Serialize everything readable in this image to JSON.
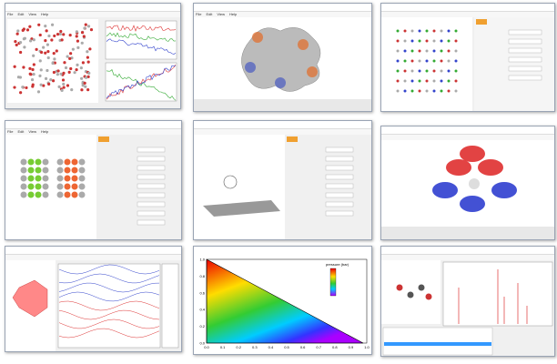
{
  "menus": {
    "window_1": [
      "File",
      "Edit",
      "View",
      "Help"
    ],
    "window_2": [
      "File",
      "Edit",
      "View",
      "Help"
    ],
    "window_4": [
      "File",
      "Edit",
      "View",
      "Help"
    ]
  },
  "plot": {
    "colorbar_label": "pressure (bar)",
    "xticks": [
      "0.0",
      "0.1",
      "0.2",
      "0.3",
      "0.4",
      "0.5",
      "0.6",
      "0.7",
      "0.8",
      "0.9",
      "1.0"
    ],
    "yticks": [
      "0.0",
      "0.2",
      "0.4",
      "0.6",
      "0.8",
      "1.0"
    ]
  }
}
